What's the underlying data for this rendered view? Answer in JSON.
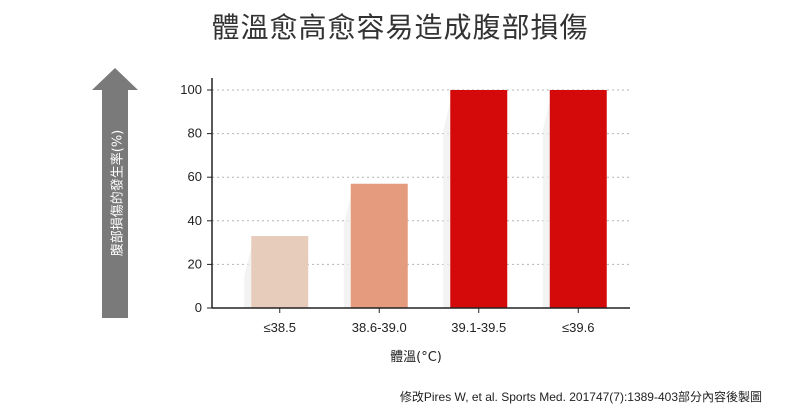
{
  "title": "體溫愈高愈容易造成腹部損傷",
  "source": "修改Pires W, et al. Sports Med. 201747(7):1389-403部分內容後製圖",
  "colors": {
    "bar_fills": [
      "#e7cbbb",
      "#e49b7e",
      "#d40a0a",
      "#d40a0a"
    ],
    "arrow": "#7a7a7a",
    "grid": "#b5b5b5",
    "axis": "#222222"
  },
  "chart_data": {
    "type": "bar",
    "title": "體溫愈高愈容易造成腹部損傷",
    "xlabel": "體溫(°C)",
    "ylabel": "腹部損傷的發生率(%)",
    "categories": [
      "≤38.5",
      "38.6-39.0",
      "39.1-39.5",
      "≤39.6"
    ],
    "values": [
      33,
      57,
      100,
      100
    ],
    "ylim": [
      0,
      100
    ],
    "yticks": [
      0,
      20,
      40,
      60,
      80,
      100
    ],
    "grid": true,
    "legend": "none"
  }
}
